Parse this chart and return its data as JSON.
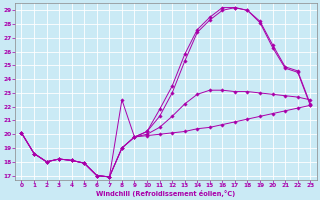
{
  "xlabel": "Windchill (Refroidissement éolien,°C)",
  "bg_color": "#caeaf5",
  "line_color": "#aa00aa",
  "grid_color": "#ffffff",
  "xlim": [
    -0.5,
    23.5
  ],
  "ylim": [
    16.7,
    29.5
  ],
  "yticks": [
    17,
    18,
    19,
    20,
    21,
    22,
    23,
    24,
    25,
    26,
    27,
    28,
    29
  ],
  "xticks": [
    0,
    1,
    2,
    3,
    4,
    5,
    6,
    7,
    8,
    9,
    10,
    11,
    12,
    13,
    14,
    15,
    16,
    17,
    18,
    19,
    20,
    21,
    22,
    23
  ],
  "series": [
    {
      "x": [
        0,
        1,
        2,
        3,
        4,
        5,
        6,
        7,
        8,
        9,
        10,
        11,
        12,
        13,
        14,
        15,
        16,
        17,
        18,
        19,
        20,
        21,
        22,
        23
      ],
      "y": [
        20.1,
        18.6,
        18.0,
        18.2,
        18.1,
        17.9,
        17.0,
        16.9,
        19.0,
        19.8,
        19.9,
        20.0,
        20.1,
        20.2,
        20.4,
        20.5,
        20.7,
        20.9,
        21.1,
        21.3,
        21.5,
        21.7,
        21.9,
        22.1
      ]
    },
    {
      "x": [
        0,
        1,
        2,
        3,
        4,
        5,
        6,
        7,
        8,
        9,
        10,
        11,
        12,
        13,
        14,
        15,
        16,
        17,
        18,
        19,
        20,
        21,
        22,
        23
      ],
      "y": [
        20.1,
        18.6,
        18.0,
        18.2,
        18.1,
        17.9,
        17.0,
        16.9,
        19.0,
        19.8,
        20.0,
        20.5,
        21.3,
        22.2,
        22.9,
        23.2,
        23.2,
        23.1,
        23.1,
        23.0,
        22.9,
        22.8,
        22.7,
        22.5
      ]
    },
    {
      "x": [
        0,
        1,
        2,
        3,
        4,
        5,
        6,
        7,
        8,
        9,
        10,
        11,
        12,
        13,
        14,
        15,
        16,
        17,
        18,
        19,
        20,
        21,
        22,
        23
      ],
      "y": [
        20.1,
        18.6,
        18.0,
        18.2,
        18.1,
        17.9,
        17.0,
        16.9,
        19.0,
        19.8,
        20.2,
        21.8,
        23.5,
        25.8,
        27.6,
        28.5,
        29.2,
        29.2,
        29.0,
        28.2,
        26.5,
        24.9,
        24.6,
        22.2
      ]
    },
    {
      "x": [
        0,
        1,
        2,
        3,
        4,
        5,
        6,
        7,
        8,
        9,
        10,
        11,
        12,
        13,
        14,
        15,
        16,
        17,
        18,
        19,
        20,
        21,
        22,
        23
      ],
      "y": [
        20.1,
        18.6,
        18.0,
        18.2,
        18.1,
        17.9,
        17.0,
        16.9,
        22.5,
        19.8,
        20.2,
        21.3,
        23.0,
        25.3,
        27.4,
        28.3,
        29.0,
        29.2,
        29.0,
        28.1,
        26.3,
        24.8,
        24.5,
        22.1
      ]
    }
  ]
}
